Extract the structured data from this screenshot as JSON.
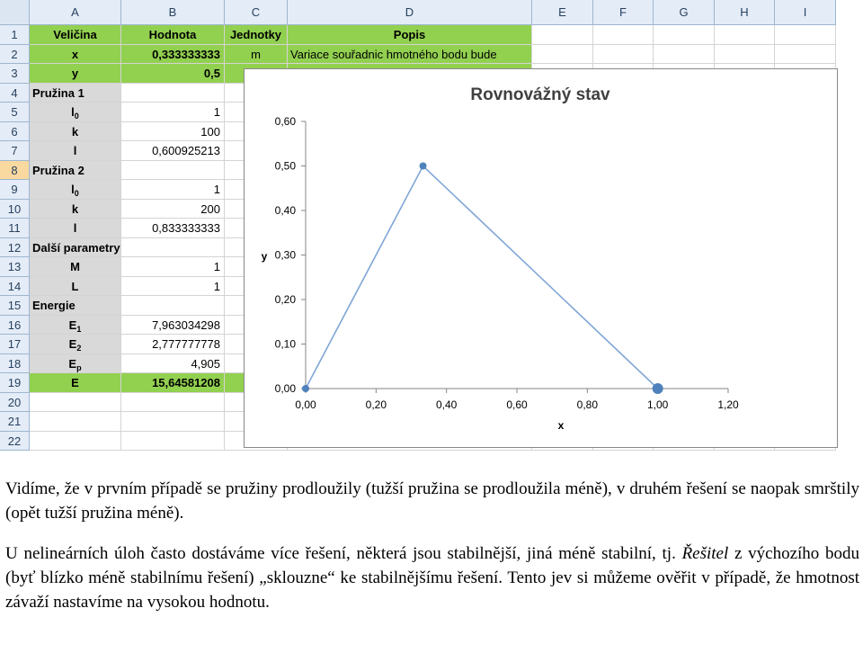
{
  "sheet": {
    "columns": [
      "A",
      "B",
      "C",
      "D",
      "E",
      "F",
      "G",
      "H",
      "I"
    ],
    "rows": [
      {
        "n": "1",
        "a": "Veličina",
        "a_sub": "",
        "b": "Hodnota",
        "c": "Jednotky",
        "d": "Popis"
      },
      {
        "n": "2",
        "a": "x",
        "a_sub": "",
        "b": "0,333333333",
        "c": "m",
        "d": "Variace souřadnic hmotného bodu bude"
      },
      {
        "n": "3",
        "a": "y",
        "a_sub": "",
        "b": "0,5",
        "c": "",
        "d": ""
      },
      {
        "n": "4",
        "a": "Pružina 1",
        "a_sub": "",
        "b": "",
        "c": "",
        "d": ""
      },
      {
        "n": "5",
        "a": "l",
        "a_sub": "0",
        "b": "1",
        "c": "",
        "d": ""
      },
      {
        "n": "6",
        "a": "k",
        "a_sub": "",
        "b": "100",
        "c": "",
        "d": ""
      },
      {
        "n": "7",
        "a": "l",
        "a_sub": "",
        "b": "0,600925213",
        "c": "",
        "d": ""
      },
      {
        "n": "8",
        "a": "Pružina 2",
        "a_sub": "",
        "b": "",
        "c": "",
        "d": ""
      },
      {
        "n": "9",
        "a": "l",
        "a_sub": "0",
        "b": "1",
        "c": "",
        "d": ""
      },
      {
        "n": "10",
        "a": "k",
        "a_sub": "",
        "b": "200",
        "c": "",
        "d": ""
      },
      {
        "n": "11",
        "a": "l",
        "a_sub": "",
        "b": "0,833333333",
        "c": "",
        "d": ""
      },
      {
        "n": "12",
        "a": "Další parametry",
        "a_sub": "",
        "b": "",
        "c": "",
        "d": ""
      },
      {
        "n": "13",
        "a": "M",
        "a_sub": "",
        "b": "1",
        "c": "",
        "d": ""
      },
      {
        "n": "14",
        "a": "L",
        "a_sub": "",
        "b": "1",
        "c": "",
        "d": ""
      },
      {
        "n": "15",
        "a": "Energie",
        "a_sub": "",
        "b": "",
        "c": "",
        "d": ""
      },
      {
        "n": "16",
        "a": "E",
        "a_sub": "1",
        "b": "7,963034298",
        "c": "",
        "d": ""
      },
      {
        "n": "17",
        "a": "E",
        "a_sub": "2",
        "b": "2,777777778",
        "c": "",
        "d": ""
      },
      {
        "n": "18",
        "a": "E",
        "a_sub": "p",
        "b": "4,905",
        "c": "",
        "d": ""
      },
      {
        "n": "19",
        "a": "E",
        "a_sub": "",
        "b": "15,64581208",
        "c": "",
        "d": ""
      },
      {
        "n": "20",
        "a": "",
        "a_sub": "",
        "b": "",
        "c": "",
        "d": ""
      },
      {
        "n": "21",
        "a": "",
        "a_sub": "",
        "b": "",
        "c": "",
        "d": ""
      },
      {
        "n": "22",
        "a": "",
        "a_sub": "",
        "b": "",
        "c": "",
        "d": ""
      }
    ],
    "colors": {
      "green": "#92d050",
      "gray": "#d9d9d9",
      "header": "#e4ecf7",
      "selected_header": "#f9d99f",
      "series": "#4f81bd",
      "line": "#7fa6d6"
    }
  },
  "chart_data": {
    "type": "scatter",
    "title": "Rovnovážný stav",
    "xlabel": "x",
    "ylabel": "y",
    "xlim": [
      0,
      1.2
    ],
    "ylim": [
      0,
      0.6
    ],
    "x_ticks": [
      "0,00",
      "0,20",
      "0,40",
      "0,60",
      "0,80",
      "1,00",
      "1,20"
    ],
    "y_ticks": [
      "0,00",
      "0,10",
      "0,20",
      "0,30",
      "0,40",
      "0,50",
      "0,60"
    ],
    "series": [
      {
        "x": [
          0,
          0.333333333,
          1
        ],
        "y": [
          0,
          0.5,
          0
        ],
        "marker_sizes": [
          4,
          4,
          6
        ]
      }
    ],
    "grid": false,
    "legend": "none"
  },
  "text": {
    "p1": "Vidíme, že v prvním případě se pružiny prodloužily (tužší pružina se prodloužila méně), v druhém řešení se naopak smrštily (opět tužší pružina méně).",
    "p2_start": "U nelineárních úloh často dostáváme více řešení, některá jsou stabilnější, jiná méně stabilní, tj. ",
    "p2_italic": "Řešitel",
    "p2_end": " z výchozího bodu (byť blízko méně stabilnímu řešení) „sklouzne“ ke stabilnějšímu řešení. Tento jev si můžeme ověřit v případě, že hmotnost závaží nastavíme na vysokou hodnotu."
  }
}
